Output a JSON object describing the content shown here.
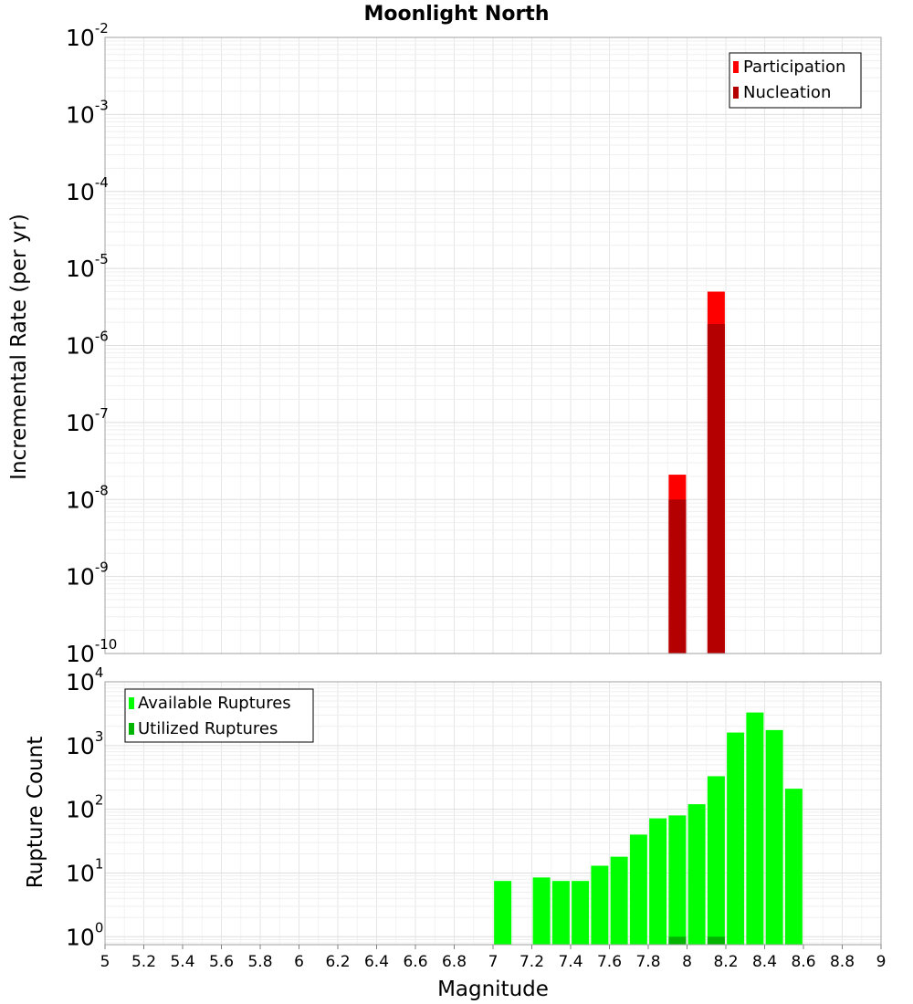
{
  "chart_data": [
    {
      "type": "bar",
      "title": "Moonlight North",
      "ylabel": "Incremental Rate (per yr)",
      "yscale": "log",
      "ylim": [
        1e-10,
        0.01
      ],
      "xlim": [
        5,
        9
      ],
      "grid": true,
      "legend_placement": "top-right",
      "yticks": [
        {
          "base": "10",
          "exp": "-2"
        },
        {
          "base": "10",
          "exp": "-3"
        },
        {
          "base": "10",
          "exp": "-4"
        },
        {
          "base": "10",
          "exp": "-5"
        },
        {
          "base": "10",
          "exp": "-6"
        },
        {
          "base": "10",
          "exp": "-7"
        },
        {
          "base": "10",
          "exp": "-8"
        },
        {
          "base": "10",
          "exp": "-9"
        },
        {
          "base": "10",
          "exp": "-10"
        }
      ],
      "series": [
        {
          "name": "Participation",
          "color": "#ff0000",
          "x": [
            7.95,
            8.15
          ],
          "values": [
            2.1e-08,
            5e-06
          ]
        },
        {
          "name": "Nucleation",
          "color": "#b40000",
          "x": [
            7.95,
            8.15
          ],
          "values": [
            1e-08,
            1.9e-06
          ]
        }
      ]
    },
    {
      "type": "bar",
      "xlabel": "Magnitude",
      "ylabel": "Rupture Count",
      "yscale": "log",
      "ylim": [
        0.75,
        10000
      ],
      "xlim": [
        5,
        9
      ],
      "grid": true,
      "legend_placement": "top-left",
      "xticks": [
        "5",
        "5.2",
        "5.4",
        "5.6",
        "5.8",
        "6",
        "6.2",
        "6.4",
        "6.6",
        "6.8",
        "7",
        "7.2",
        "7.4",
        "7.6",
        "7.8",
        "8",
        "8.2",
        "8.4",
        "8.6",
        "8.8",
        "9"
      ],
      "yticks": [
        {
          "base": "10",
          "exp": "4"
        },
        {
          "base": "10",
          "exp": "3"
        },
        {
          "base": "10",
          "exp": "2"
        },
        {
          "base": "10",
          "exp": "1"
        },
        {
          "base": "10",
          "exp": "0"
        }
      ],
      "series": [
        {
          "name": "Available Ruptures",
          "color": "#00ff00",
          "x": [
            7.05,
            7.25,
            7.35,
            7.45,
            7.55,
            7.65,
            7.75,
            7.85,
            7.95,
            8.05,
            8.15,
            8.25,
            8.35,
            8.45,
            8.55
          ],
          "values": [
            7.5,
            8.5,
            7.5,
            7.5,
            13,
            18,
            40,
            72,
            80,
            120,
            330,
            1600,
            3300,
            1750,
            210
          ]
        },
        {
          "name": "Utilized Ruptures",
          "color": "#00b400",
          "x": [
            7.95,
            8.15
          ],
          "values": [
            1,
            1
          ]
        }
      ]
    }
  ]
}
